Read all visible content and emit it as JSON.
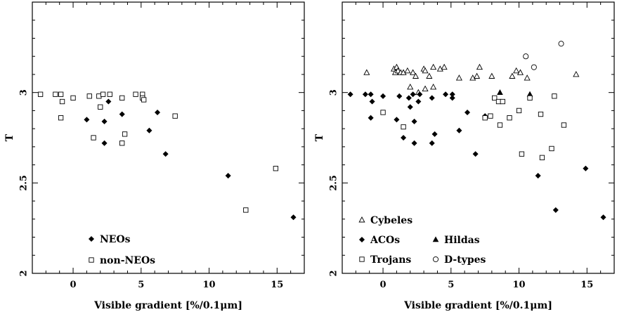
{
  "chart_data": [
    {
      "type": "scatter",
      "xlabel": "Visible gradient [%/0.1μm]",
      "ylabel": "T",
      "xlim": [
        -3,
        17
      ],
      "ylim": [
        2,
        3.5
      ],
      "x_ticks": [
        0,
        5,
        10,
        15
      ],
      "y_ticks": [
        2,
        2.5,
        3
      ],
      "y_tick_labels": [
        "2",
        "2.5",
        "3"
      ],
      "legend_position": "bottom-left",
      "series": [
        {
          "name": "NEOs",
          "marker": "diamond-filled",
          "points": [
            [
              1.0,
              2.85
            ],
            [
              2.3,
              2.84
            ],
            [
              2.3,
              2.72
            ],
            [
              2.6,
              2.95
            ],
            [
              3.6,
              2.88
            ],
            [
              5.6,
              2.79
            ],
            [
              6.2,
              2.89
            ],
            [
              6.8,
              2.66
            ],
            [
              11.4,
              2.54
            ],
            [
              16.2,
              2.31
            ]
          ]
        },
        {
          "name": "non-NEOs",
          "marker": "square-open",
          "points": [
            [
              -2.4,
              2.99
            ],
            [
              -1.3,
              2.99
            ],
            [
              -0.9,
              2.99
            ],
            [
              -0.8,
              2.95
            ],
            [
              -0.9,
              2.86
            ],
            [
              0.0,
              2.97
            ],
            [
              1.2,
              2.98
            ],
            [
              1.5,
              2.75
            ],
            [
              1.9,
              2.98
            ],
            [
              2.0,
              2.92
            ],
            [
              2.2,
              2.99
            ],
            [
              2.7,
              2.99
            ],
            [
              3.6,
              2.97
            ],
            [
              3.6,
              2.72
            ],
            [
              3.8,
              2.77
            ],
            [
              4.6,
              2.99
            ],
            [
              5.1,
              2.99
            ],
            [
              5.1,
              2.97
            ],
            [
              5.2,
              2.96
            ],
            [
              7.5,
              2.87
            ],
            [
              12.7,
              2.35
            ],
            [
              14.9,
              2.58
            ]
          ]
        }
      ]
    },
    {
      "type": "scatter",
      "xlabel": "Visible gradient [%/0.1μm]",
      "ylabel": "T",
      "xlim": [
        -3,
        17
      ],
      "ylim": [
        2,
        3.5
      ],
      "x_ticks": [
        0,
        5,
        10,
        15
      ],
      "y_ticks": [
        2,
        2.5,
        3
      ],
      "y_tick_labels": [
        "2",
        "2.5",
        "3"
      ],
      "legend_position": "bottom-left",
      "series": [
        {
          "name": "Cybeles",
          "marker": "triangle-open",
          "points": [
            [
              -1.2,
              3.11
            ],
            [
              0.8,
              3.13
            ],
            [
              0.9,
              3.11
            ],
            [
              1.0,
              3.14
            ],
            [
              1.1,
              3.12
            ],
            [
              1.3,
              3.11
            ],
            [
              1.5,
              3.11
            ],
            [
              1.8,
              3.12
            ],
            [
              2.0,
              3.03
            ],
            [
              2.2,
              3.11
            ],
            [
              2.4,
              3.09
            ],
            [
              2.6,
              3.0
            ],
            [
              3.0,
              3.13
            ],
            [
              3.1,
              3.12
            ],
            [
              3.1,
              3.02
            ],
            [
              3.4,
              3.09
            ],
            [
              3.7,
              3.14
            ],
            [
              3.7,
              3.03
            ],
            [
              4.2,
              3.13
            ],
            [
              4.5,
              3.14
            ],
            [
              5.6,
              3.08
            ],
            [
              6.6,
              3.08
            ],
            [
              6.9,
              3.09
            ],
            [
              7.1,
              3.14
            ],
            [
              8.0,
              3.09
            ],
            [
              9.5,
              3.09
            ],
            [
              9.8,
              3.12
            ],
            [
              10.1,
              3.11
            ],
            [
              10.6,
              3.08
            ],
            [
              14.2,
              3.1
            ]
          ]
        },
        {
          "name": "ACOs",
          "marker": "diamond-filled",
          "points": [
            [
              -2.4,
              2.99
            ],
            [
              -1.3,
              2.99
            ],
            [
              -0.9,
              2.99
            ],
            [
              -0.8,
              2.95
            ],
            [
              -0.9,
              2.86
            ],
            [
              0.0,
              2.98
            ],
            [
              1.2,
              2.98
            ],
            [
              1.5,
              2.75
            ],
            [
              1.9,
              2.97
            ],
            [
              2.0,
              2.92
            ],
            [
              2.2,
              2.99
            ],
            [
              2.7,
              2.99
            ],
            [
              2.6,
              2.95
            ],
            [
              3.6,
              2.97
            ],
            [
              3.6,
              2.72
            ],
            [
              3.8,
              2.77
            ],
            [
              4.6,
              2.99
            ],
            [
              5.1,
              2.99
            ],
            [
              5.1,
              2.97
            ],
            [
              5.6,
              2.79
            ],
            [
              6.2,
              2.89
            ],
            [
              6.8,
              2.66
            ],
            [
              7.5,
              2.87
            ],
            [
              11.4,
              2.54
            ],
            [
              12.7,
              2.35
            ],
            [
              14.9,
              2.58
            ],
            [
              16.2,
              2.31
            ],
            [
              2.3,
              2.84
            ],
            [
              2.3,
              2.72
            ],
            [
              1.0,
              2.85
            ]
          ]
        },
        {
          "name": "Hildas",
          "marker": "triangle-filled",
          "points": [
            [
              8.6,
              3.0
            ],
            [
              10.8,
              2.99
            ]
          ]
        },
        {
          "name": "Trojans",
          "marker": "square-open",
          "points": [
            [
              0.0,
              2.89
            ],
            [
              1.5,
              2.81
            ],
            [
              7.5,
              2.86
            ],
            [
              7.9,
              2.87
            ],
            [
              8.2,
              2.97
            ],
            [
              8.5,
              2.95
            ],
            [
              8.6,
              2.82
            ],
            [
              8.8,
              2.95
            ],
            [
              9.3,
              2.86
            ],
            [
              10.0,
              2.9
            ],
            [
              10.2,
              2.66
            ],
            [
              10.8,
              2.97
            ],
            [
              11.6,
              2.88
            ],
            [
              11.7,
              2.64
            ],
            [
              12.4,
              2.69
            ],
            [
              12.6,
              2.98
            ],
            [
              13.3,
              2.82
            ]
          ]
        },
        {
          "name": "D-types",
          "marker": "circle-open",
          "points": [
            [
              10.5,
              3.2
            ],
            [
              11.1,
              3.14
            ],
            [
              13.1,
              3.27
            ]
          ]
        }
      ]
    }
  ]
}
